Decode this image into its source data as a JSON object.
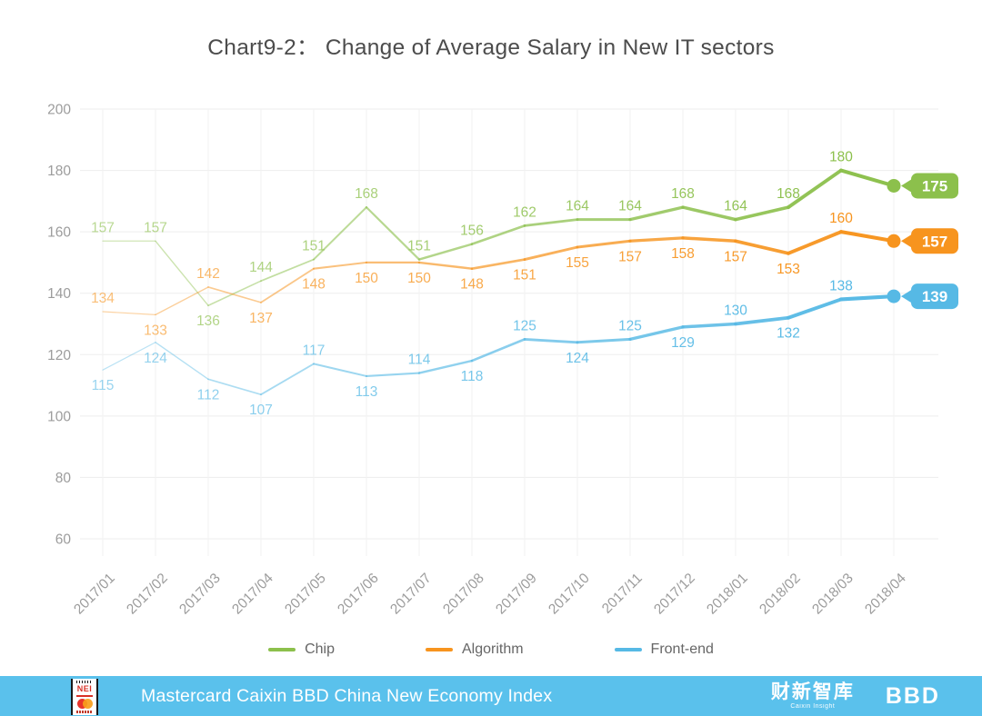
{
  "chart_data": {
    "type": "line",
    "title": "Chart9-2： Change of Average Salary in New IT sectors",
    "x": [
      "2017/01",
      "2017/02",
      "2017/03",
      "2017/04",
      "2017/05",
      "2017/06",
      "2017/07",
      "2017/08",
      "2017/09",
      "2017/10",
      "2017/11",
      "2017/12",
      "2018/01",
      "2018/02",
      "2018/03",
      "2018/04"
    ],
    "yticks": [
      60,
      80,
      100,
      120,
      140,
      160,
      180,
      200
    ],
    "ylim": [
      60,
      200
    ],
    "grid": true,
    "legend_position": "bottom",
    "series": [
      {
        "name": "Chip",
        "color": "#8cc04c",
        "values": [
          157,
          157,
          136,
          144,
          151,
          168,
          151,
          156,
          162,
          164,
          164,
          168,
          164,
          168,
          180,
          175
        ],
        "label_side": [
          "above",
          "above",
          "below",
          "above",
          "above",
          "above",
          "above",
          "above",
          "above",
          "above",
          "above",
          "above",
          "above",
          "above",
          "above"
        ],
        "end_value": 175
      },
      {
        "name": "Algorithm",
        "color": "#f7941e",
        "values": [
          134,
          133,
          142,
          137,
          148,
          150,
          150,
          148,
          151,
          155,
          157,
          158,
          157,
          153,
          160,
          157
        ],
        "label_side": [
          "above",
          "below",
          "above",
          "below",
          "below",
          "below",
          "below",
          "below",
          "below",
          "below",
          "below",
          "below",
          "below",
          "below",
          "above"
        ],
        "end_value": 157
      },
      {
        "name": "Front-end",
        "color": "#56b9e5",
        "values": [
          115,
          124,
          112,
          107,
          117,
          113,
          114,
          118,
          125,
          124,
          125,
          129,
          130,
          132,
          138,
          139
        ],
        "label_side": [
          "below",
          "below",
          "below",
          "below",
          "above",
          "below",
          "above",
          "below",
          "above",
          "below",
          "above",
          "below",
          "above",
          "below",
          "above"
        ],
        "end_value": 139
      }
    ]
  },
  "footer": {
    "bar_color": "#5ac1ec",
    "text": "Mastercard Caixin BBD China New Economy Index",
    "logo_text": "NEI",
    "right_logos": [
      {
        "label": "财新智库",
        "sub": "Caixin Insight"
      },
      {
        "label": "BBD"
      }
    ]
  }
}
